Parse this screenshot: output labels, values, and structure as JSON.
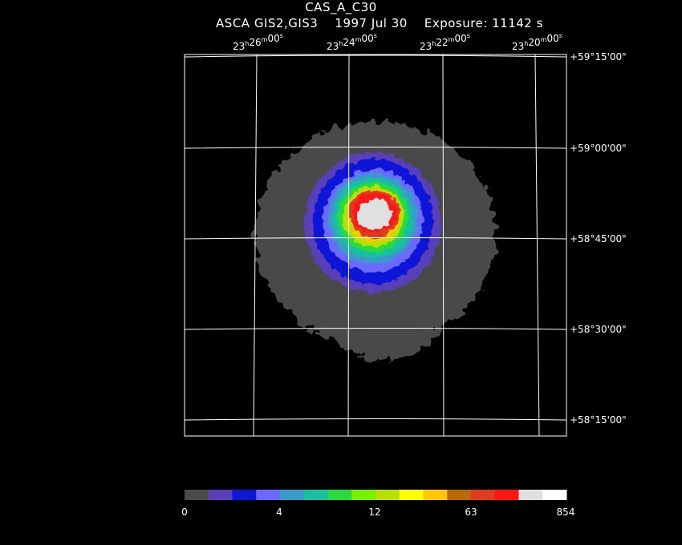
{
  "header": {
    "object_name": "CAS_A_C30",
    "subtitle": "ASCA GIS2,GIS3    1997 Jul 30    Exposure: 11142 s"
  },
  "ra_labels": [
    {
      "h": "23",
      "m": "26",
      "s": "00"
    },
    {
      "h": "23",
      "m": "24",
      "s": "00"
    },
    {
      "h": "23",
      "m": "22",
      "s": "00"
    },
    {
      "h": "23",
      "m": "20",
      "s": "00"
    }
  ],
  "dec_labels": [
    "+59°15'00\"",
    "+59°00'00\"",
    "+58°45'00\"",
    "+58°30'00\"",
    "+58°15'00\""
  ],
  "colorbar": {
    "colors": [
      "#4a4a4a",
      "#5a3fb8",
      "#0b18d8",
      "#6a6aff",
      "#3a9ac8",
      "#18c0a0",
      "#28dc40",
      "#78f000",
      "#b8e000",
      "#ffff00",
      "#ffc800",
      "#b86a00",
      "#e03a20",
      "#ff1414",
      "#e0e0e0",
      "#ffffff"
    ],
    "tick_labels": [
      "0",
      "4",
      "12",
      "63",
      "854"
    ]
  },
  "image_colors": {
    "background": "#000000",
    "grid": "#ffffff"
  }
}
